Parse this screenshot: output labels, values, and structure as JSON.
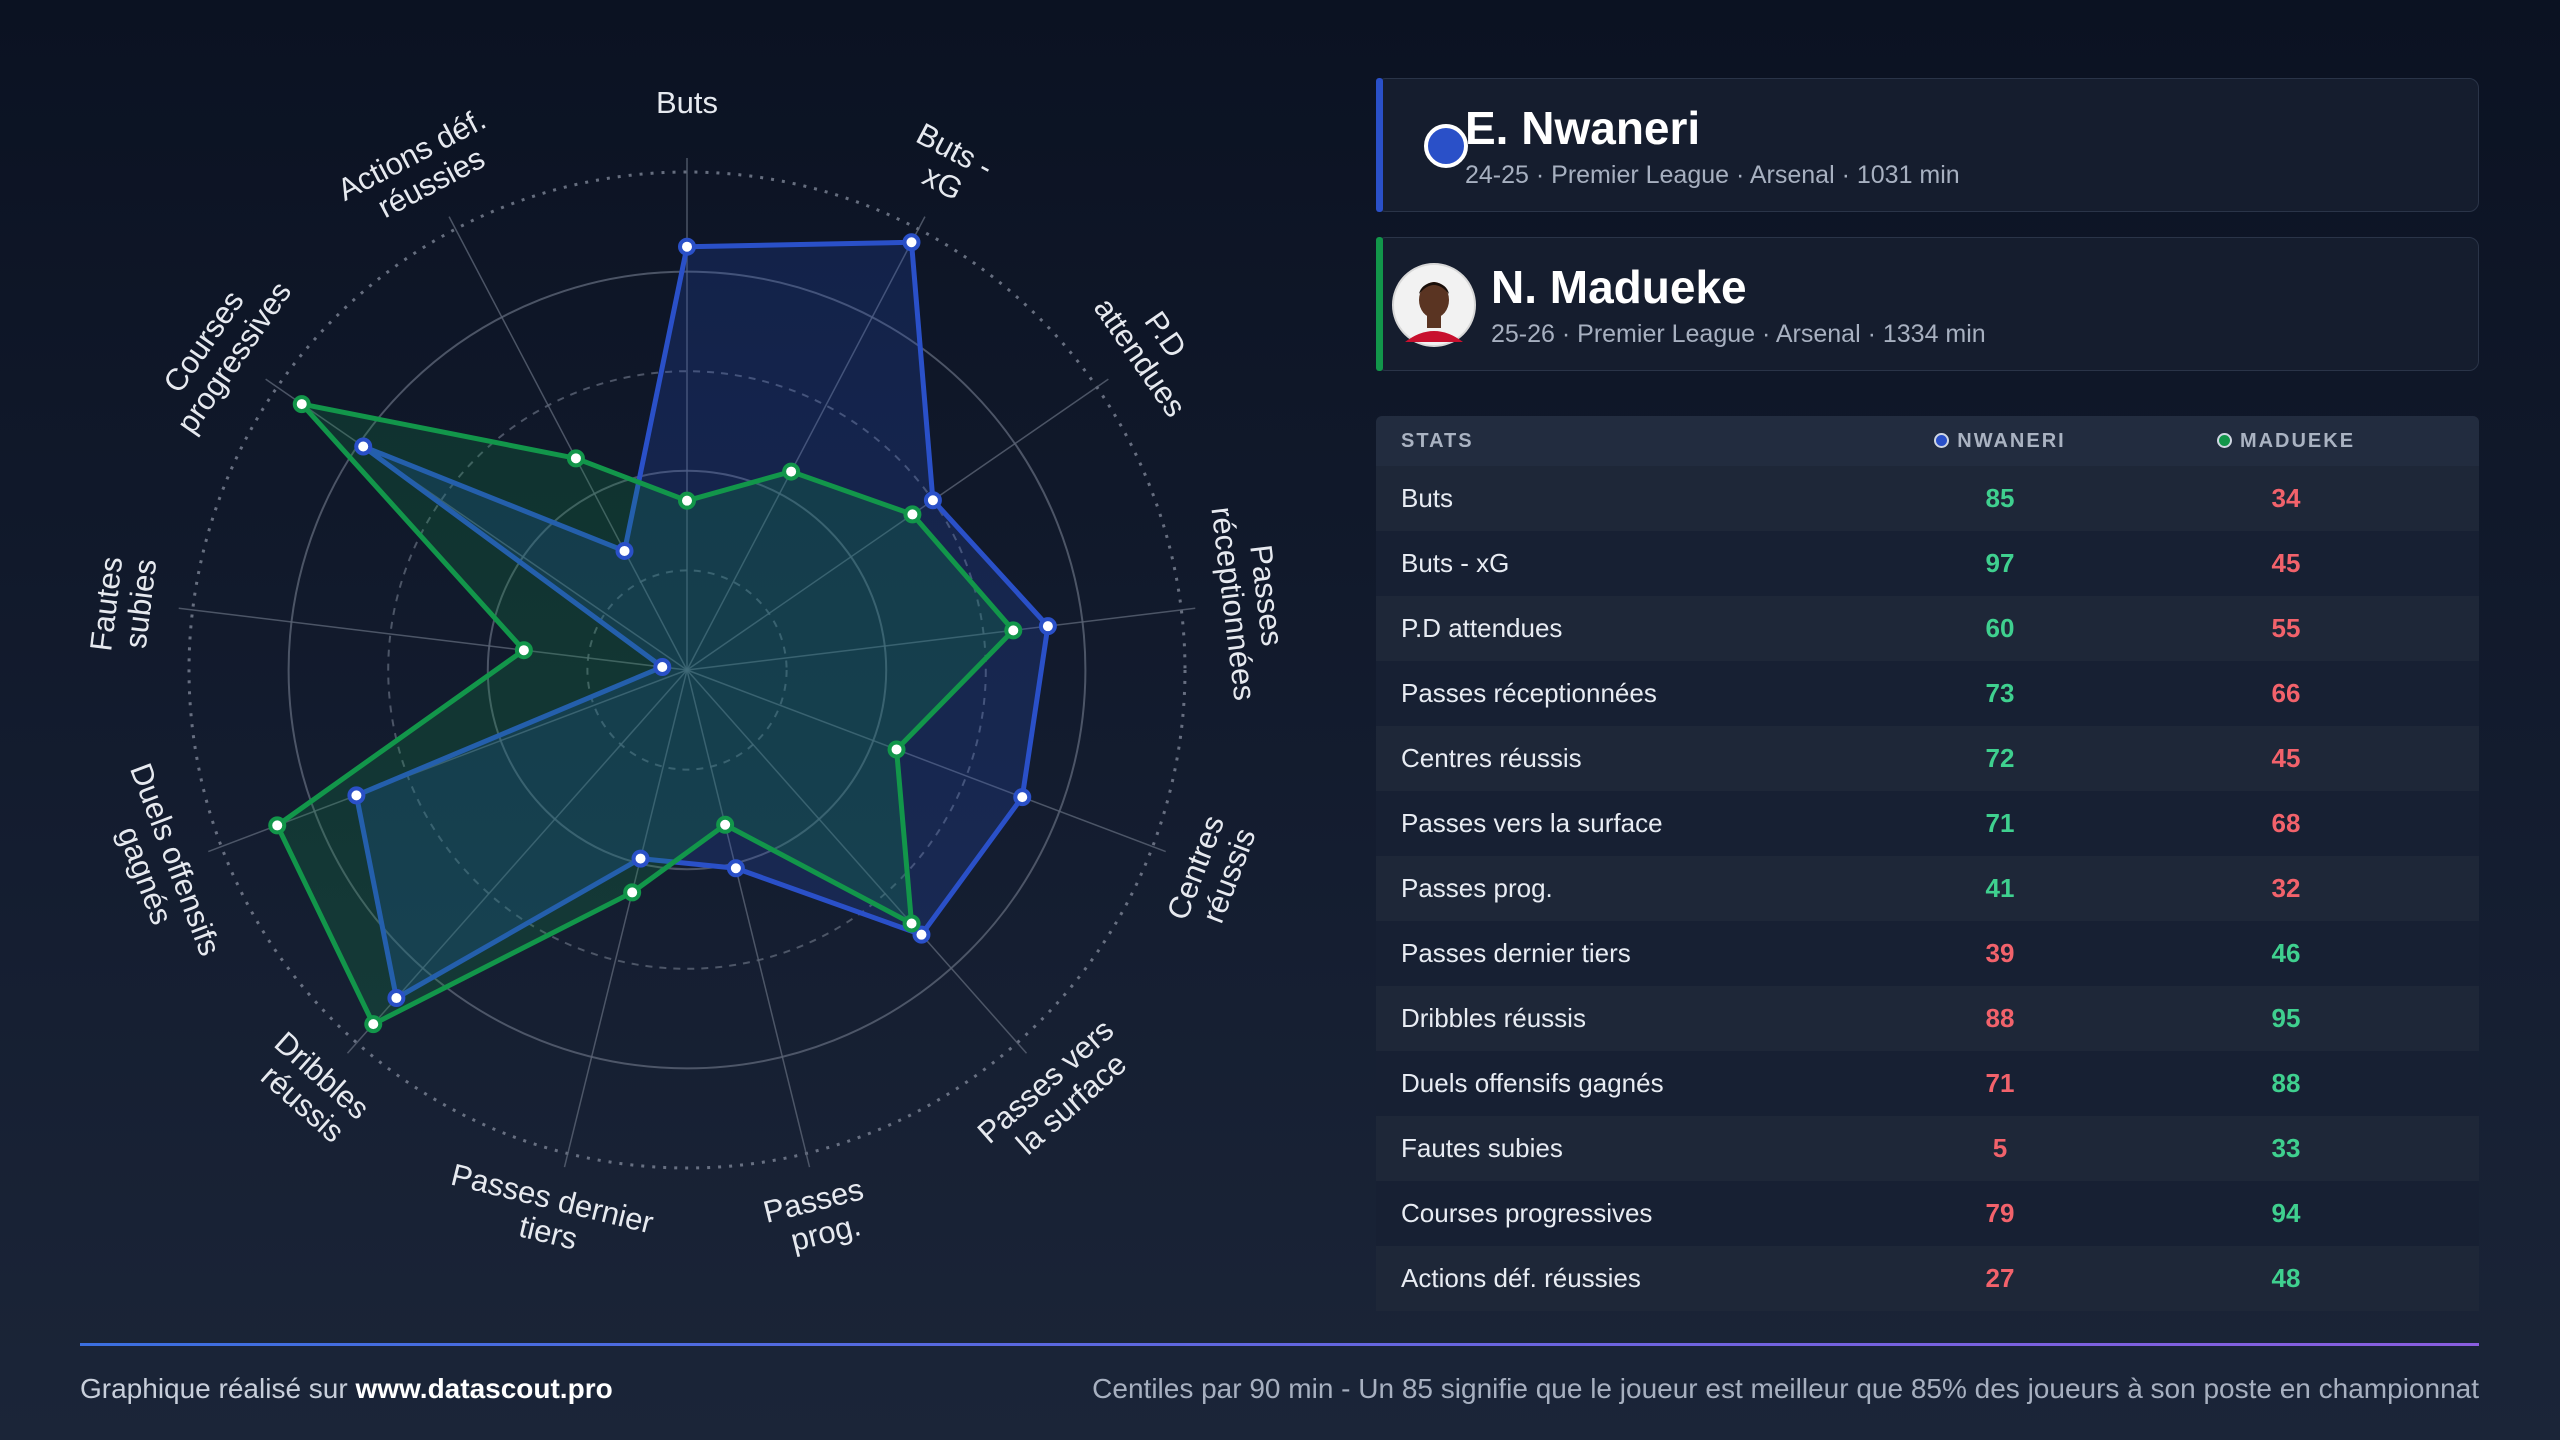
{
  "players": [
    {
      "name": "E. Nwaneri",
      "details": "24-25 · Premier League · Arsenal · 1031 min"
    },
    {
      "name": "N. Madueke",
      "details": "25-26 · Premier League · Arsenal · 1334 min"
    }
  ],
  "chart_data": {
    "type": "radar",
    "categories": [
      "Buts",
      "Buts - xG",
      "P.D attendues",
      "Passes réceptionnées",
      "Centres réussis",
      "Passes vers la surface",
      "Passes prog.",
      "Passes dernier tiers",
      "Dribbles réussis",
      "Duels offensifs gagnés",
      "Fautes subies",
      "Courses progressives",
      "Actions déf. réussies"
    ],
    "series": [
      {
        "name": "NWANERI",
        "color": "#2a50c8",
        "values": [
          85,
          97,
          60,
          73,
          72,
          71,
          41,
          39,
          88,
          71,
          5,
          79,
          27
        ]
      },
      {
        "name": "MADUEKE",
        "color": "#12964a",
        "values": [
          34,
          45,
          55,
          66,
          45,
          68,
          32,
          46,
          95,
          88,
          33,
          94,
          48
        ]
      }
    ],
    "ylim": [
      0,
      100
    ],
    "yticks": [
      20,
      40,
      60,
      80,
      100
    ],
    "grid": true
  },
  "table": {
    "header": "STATS"
  },
  "footer": {
    "credit_prefix": "Graphique réalisé sur",
    "credit_site": "www.datascout.pro",
    "note": "Centiles par 90 min - Un 85 signifie que le joueur est meilleur que 85% des joueurs à son poste en championnat"
  }
}
